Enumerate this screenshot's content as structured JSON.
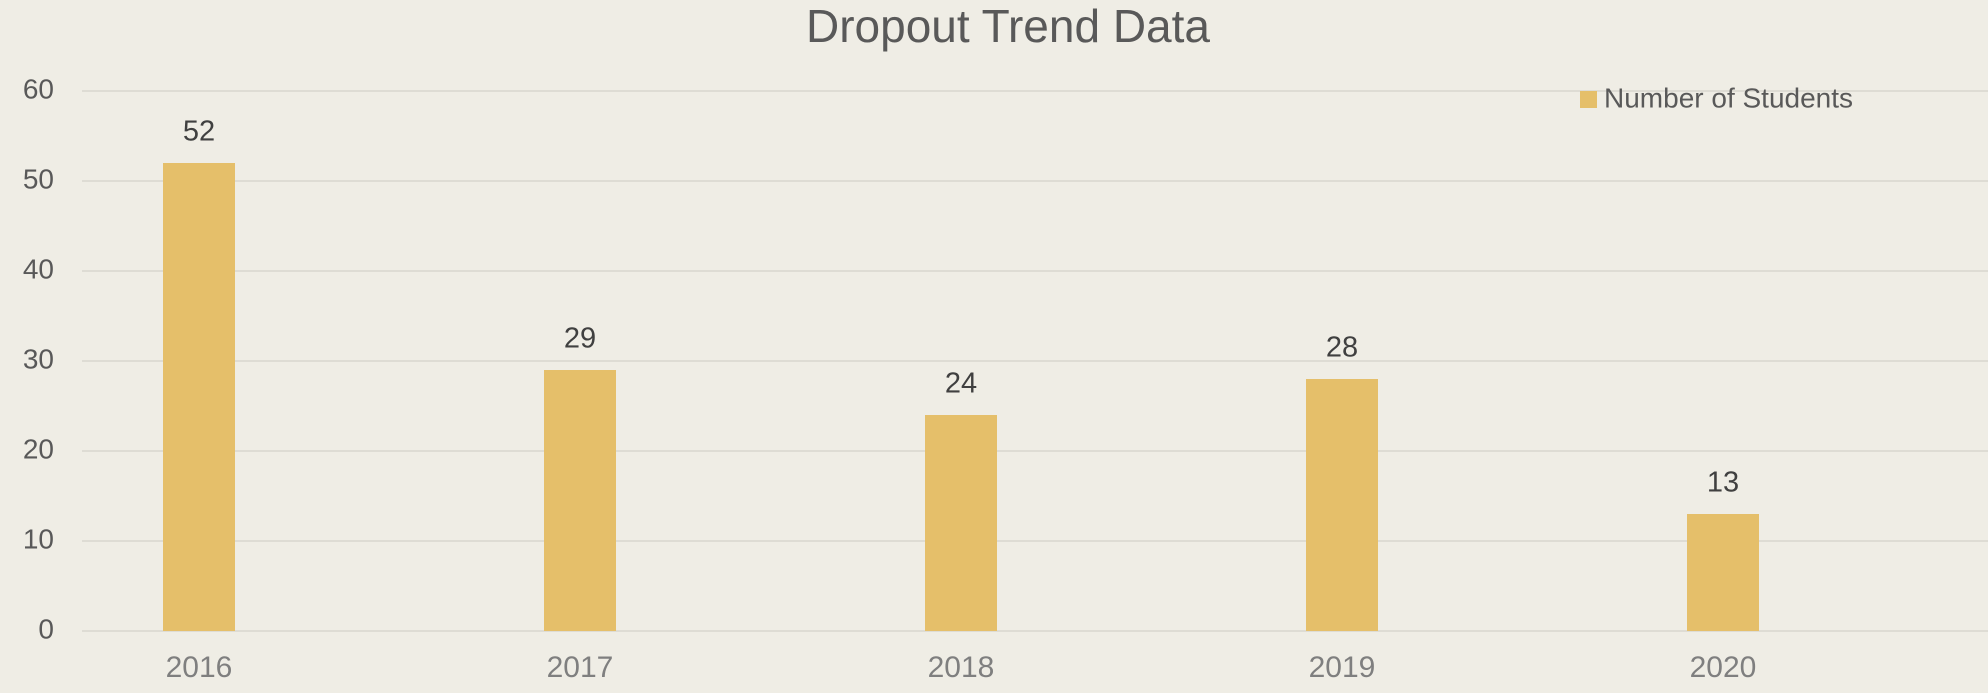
{
  "chart_data": {
    "type": "bar",
    "title": "Dropout Trend Data",
    "categories": [
      "2016",
      "2017",
      "2018",
      "2019",
      "2020"
    ],
    "series": [
      {
        "name": "Number of Students",
        "color": "#e5bf6a",
        "values": [
          52,
          29,
          24,
          28,
          13
        ]
      }
    ],
    "ylim": [
      0,
      60
    ],
    "yticks": [
      0,
      10,
      20,
      30,
      40,
      50,
      60
    ],
    "grid": true,
    "legend": "top-right"
  }
}
